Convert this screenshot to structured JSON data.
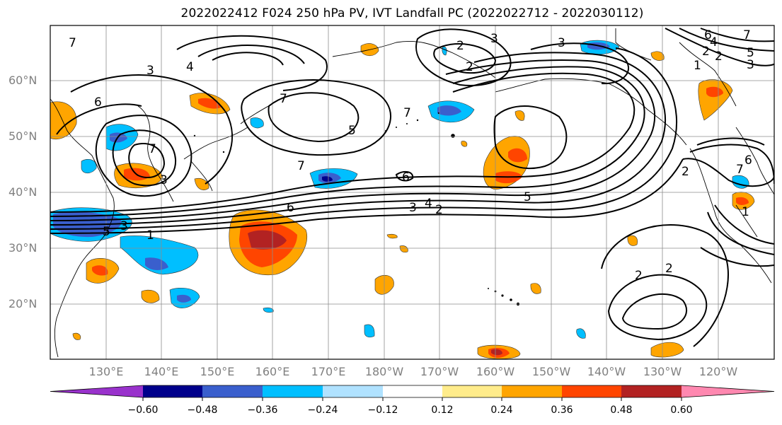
{
  "title": "2022022412 F024 250 hPa PV, IVT Landfall PC (2022022712 - 2022030112)",
  "lat_labels": [
    "60°N",
    "50°N",
    "40°N",
    "30°N",
    "20°N"
  ],
  "lon_labels": [
    "130°E",
    "140°E",
    "150°E",
    "160°E",
    "170°E",
    "180°W",
    "170°W",
    "160°W",
    "150°W",
    "140°W",
    "130°W",
    "120°W"
  ],
  "colorbar": {
    "ticks": [
      "−0.60",
      "−0.48",
      "−0.36",
      "−0.24",
      "−0.12",
      "0.12",
      "0.24",
      "0.36",
      "0.48",
      "0.60"
    ],
    "colors": [
      "#9932cc",
      "#00008b",
      "#3a5fcd",
      "#00bfff",
      "#b0e2ff",
      "#ffffff",
      "#ffec8b",
      "#ffa500",
      "#ff4500",
      "#b22222",
      "#ff88b0"
    ]
  },
  "contour_labels": [
    "7",
    "3",
    "4",
    "6",
    "7",
    "3",
    "7",
    "3",
    "2",
    "3",
    "2",
    "6",
    "4",
    "5",
    "3",
    "7",
    "6",
    "5",
    "7",
    "5",
    "3",
    "1",
    "2",
    "6",
    "7",
    "2",
    "2",
    "5",
    "3",
    "4",
    "2",
    "7",
    "6",
    "1",
    "2",
    "2",
    "1"
  ]
}
